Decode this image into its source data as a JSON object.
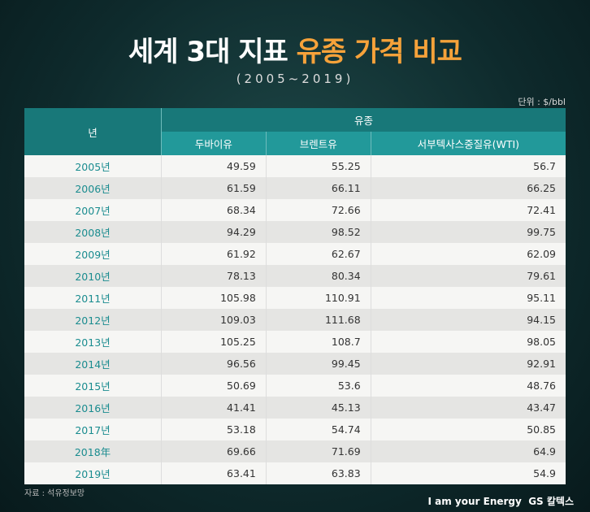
{
  "header": {
    "title_white": "세계 3대 지표",
    "title_accent": "유종 가격 비교",
    "subtitle": "(2005~2019)",
    "unit": "단위 : $/bbl"
  },
  "table": {
    "year_header": "년",
    "group_header": "유종",
    "columns": [
      "두바이유",
      "브렌트유",
      "서부텍사스중질유(WTI)"
    ],
    "rows": [
      [
        "2005년",
        49.59,
        55.25,
        56.7
      ],
      [
        "2006년",
        61.59,
        66.11,
        66.25
      ],
      [
        "2007년",
        68.34,
        72.66,
        72.41
      ],
      [
        "2008년",
        94.29,
        98.52,
        99.75
      ],
      [
        "2009년",
        61.92,
        62.67,
        62.09
      ],
      [
        "2010년",
        78.13,
        80.34,
        79.61
      ],
      [
        "2011년",
        105.98,
        110.91,
        95.11
      ],
      [
        "2012년",
        109.03,
        111.68,
        94.15
      ],
      [
        "2013년",
        105.25,
        108.7,
        98.05
      ],
      [
        "2014년",
        96.56,
        99.45,
        92.91
      ],
      [
        "2015년",
        50.69,
        53.6,
        48.76
      ],
      [
        "2016년",
        41.41,
        45.13,
        43.47
      ],
      [
        "2017년",
        53.18,
        54.74,
        50.85
      ],
      [
        "2018年",
        69.66,
        71.69,
        64.9
      ],
      [
        "2019년",
        63.41,
        63.83,
        54.9
      ]
    ]
  },
  "footer": {
    "source": "자료 : 석유정보망",
    "slogan": "I am your Energy",
    "brand": "GS 칼텍스"
  }
}
